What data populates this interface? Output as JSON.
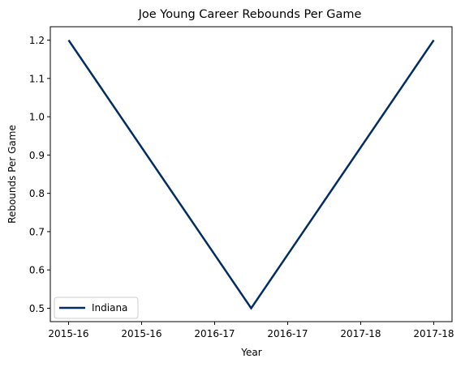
{
  "chart_data": {
    "type": "line",
    "title": "Joe Young  Career Rebounds Per Game",
    "xlabel": "Year",
    "ylabel": "Rebounds Per Game",
    "x": [
      0,
      1,
      2
    ],
    "xlim": [
      -0.1,
      2.1
    ],
    "xticks": [
      0,
      0.4,
      0.8,
      1.2,
      1.6,
      2.0
    ],
    "xtick_labels": [
      "2015-16",
      "2015-16",
      "2016-17",
      "2016-17",
      "2017-18",
      "2017-18"
    ],
    "ylim": [
      0.465,
      1.235
    ],
    "yticks": [
      0.5,
      0.6,
      0.7,
      0.8,
      0.9,
      1.0,
      1.1,
      1.2
    ],
    "ytick_labels": [
      "0.5",
      "0.6",
      "0.7",
      "0.8",
      "0.9",
      "1.0",
      "1.1",
      "1.2"
    ],
    "grid": false,
    "legend_position": "lower-left",
    "series": [
      {
        "name": "Indiana",
        "values": [
          1.2,
          0.5,
          1.2
        ],
        "color": "#002D62"
      }
    ]
  }
}
